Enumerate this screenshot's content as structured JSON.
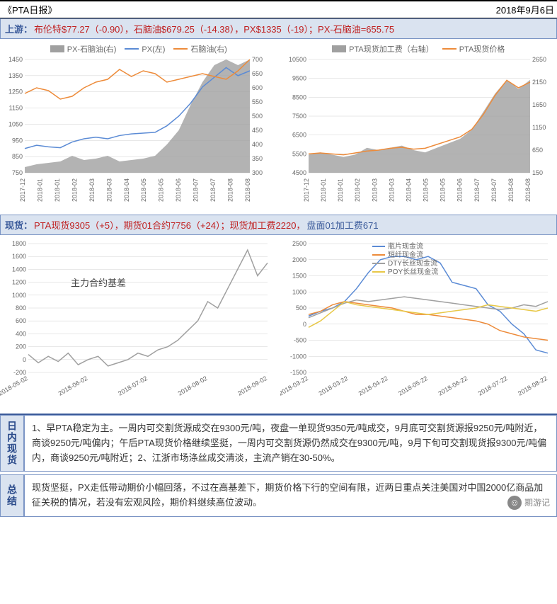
{
  "header": {
    "title": "《PTA日报》",
    "date": "2018年9月6日"
  },
  "upstream_bar": {
    "label": "上游：",
    "text1": "布伦特$77.27（-0.90），石脑油$679.25（-14.38），PX$1335（-19）；PX-石脑油=655.75"
  },
  "chart1": {
    "legend": [
      {
        "name": "PX-石脑油(右)",
        "type": "area",
        "color": "#a0a0a0"
      },
      {
        "name": "PX(左)",
        "type": "line",
        "color": "#5b8bd5"
      },
      {
        "name": "石脑油(右)",
        "type": "line",
        "color": "#ed8b3a"
      }
    ],
    "yleft": {
      "min": 750,
      "max": 1450,
      "step": 100
    },
    "yright": {
      "min": 300,
      "max": 700,
      "step": 50
    },
    "xlabels": [
      "2017-12",
      "2018-01",
      "2018-01",
      "2018-02",
      "2018-03",
      "2018-03",
      "2018-04",
      "2018-05",
      "2018-05",
      "2018-06",
      "2018-07",
      "2018-07",
      "2018-08",
      "2018-08"
    ],
    "px": [
      900,
      920,
      910,
      905,
      940,
      960,
      970,
      960,
      980,
      990,
      995,
      1000,
      1040,
      1100,
      1180,
      1280,
      1340,
      1400,
      1350,
      1380
    ],
    "naphtha": [
      580,
      600,
      590,
      560,
      570,
      600,
      620,
      630,
      665,
      640,
      660,
      650,
      620,
      630,
      640,
      650,
      640,
      630,
      660,
      700
    ],
    "spread": [
      320,
      330,
      335,
      340,
      360,
      345,
      350,
      360,
      340,
      345,
      350,
      360,
      400,
      450,
      540,
      620,
      680,
      700,
      680,
      700
    ],
    "grid_color": "#d0d0d0",
    "bg": "#ffffff"
  },
  "chart2": {
    "legend": [
      {
        "name": "PTA现货加工费（右轴）",
        "type": "area",
        "color": "#a0a0a0"
      },
      {
        "name": "PTA现货价格",
        "type": "line",
        "color": "#ed8b3a"
      }
    ],
    "yleft": {
      "min": 4500,
      "max": 10500,
      "step": 1000
    },
    "yright": {
      "min": 150,
      "max": 2650,
      "step": 500
    },
    "xlabels": [
      "2017-12",
      "2018-01",
      "2018-01",
      "2018-02",
      "2018-03",
      "2018-03",
      "2018-04",
      "2018-05",
      "2018-05",
      "2018-06",
      "2018-07",
      "2018-07",
      "2018-08",
      "2018-08"
    ],
    "price": [
      5500,
      5550,
      5500,
      5450,
      5550,
      5650,
      5700,
      5800,
      5850,
      5750,
      5800,
      6000,
      6200,
      6400,
      6800,
      7600,
      8600,
      9400,
      9000,
      9300
    ],
    "fee": [
      550,
      600,
      550,
      500,
      550,
      700,
      650,
      700,
      750,
      650,
      600,
      700,
      800,
      900,
      1100,
      1500,
      1900,
      2200,
      2000,
      2200
    ],
    "grid_color": "#d0d0d0"
  },
  "spot_bar": {
    "label": "现货：",
    "text": "PTA现货9305（+5），期货01合约7756（+24）；现货加工费2220，",
    "text_blue": "盘面01加工费671"
  },
  "chart3": {
    "annotation": "主力合约基差",
    "ylim": {
      "min": -200,
      "max": 1800,
      "step": 200
    },
    "xlabels": [
      "2018-05-02",
      "2018-06-02",
      "2018-07-02",
      "2018-08-02",
      "2018-09-02"
    ],
    "line_color": "#a0a0a0",
    "series": [
      80,
      -50,
      50,
      -30,
      100,
      -80,
      0,
      50,
      -100,
      -50,
      0,
      100,
      50,
      150,
      200,
      300,
      450,
      600,
      900,
      800,
      1100,
      1400,
      1700,
      1300,
      1500
    ],
    "grid_color": "#d0d0d0"
  },
  "chart4": {
    "legend": [
      {
        "name": "瓶片现金流",
        "color": "#5b8bd5"
      },
      {
        "name": "短纤现金流",
        "color": "#ed8b3a"
      },
      {
        "name": "DTY长丝现金流",
        "color": "#a0a0a0"
      },
      {
        "name": "POY长丝现金流",
        "color": "#e8c848"
      }
    ],
    "ylim": {
      "min": -1500,
      "max": 2500,
      "step": 500
    },
    "xlabels": [
      "2018-03-22",
      "2018-03-22",
      "2018-04-22",
      "2018-05-22",
      "2018-06-22",
      "2018-07-22",
      "2018-08-22"
    ],
    "bottle": [
      250,
      400,
      500,
      700,
      1100,
      1600,
      2000,
      2100,
      2100,
      2000,
      2100,
      1900,
      1300,
      1200,
      1100,
      600,
      400,
      0,
      -300,
      -800,
      -900
    ],
    "short": [
      300,
      400,
      600,
      700,
      650,
      600,
      550,
      500,
      400,
      300,
      300,
      250,
      200,
      150,
      100,
      0,
      -200,
      -300,
      -400,
      -450,
      -500
    ],
    "dty": [
      200,
      350,
      500,
      650,
      750,
      700,
      750,
      800,
      850,
      800,
      750,
      700,
      650,
      600,
      550,
      500,
      450,
      500,
      600,
      550,
      700
    ],
    "poy": [
      -100,
      100,
      400,
      700,
      600,
      550,
      500,
      450,
      400,
      350,
      300,
      350,
      400,
      450,
      500,
      600,
      550,
      500,
      450,
      400,
      500
    ],
    "grid_color": "#d0d0d0"
  },
  "intraday": {
    "label": "日内现货",
    "text": "1、早PTA稳定为主。一周内可交割货源成交在9300元/吨，夜盘一单现货9350元/吨成交，9月底可交割货源报9250元/吨附近，商谈9250元/吨偏内；午后PTA现货价格继续坚挺，一周内可交割货源仍然成交在9300元/吨，9月下旬可交割现货报9300元/吨偏内，商谈9250元/吨附近；2、江浙市场涤丝成交清淡，主流产销在30-50%。"
  },
  "summary": {
    "label": "总结",
    "text": "现货坚挺，PX走低带动期价小幅回落，不过在高基差下，期货价格下行的空间有限，近两日重点关注美国对中国2000亿商品加征关税的情况，若没有宏观风险，期价料继续高位波动。"
  },
  "watermark": {
    "text": "期游记",
    "icon": "☺"
  }
}
